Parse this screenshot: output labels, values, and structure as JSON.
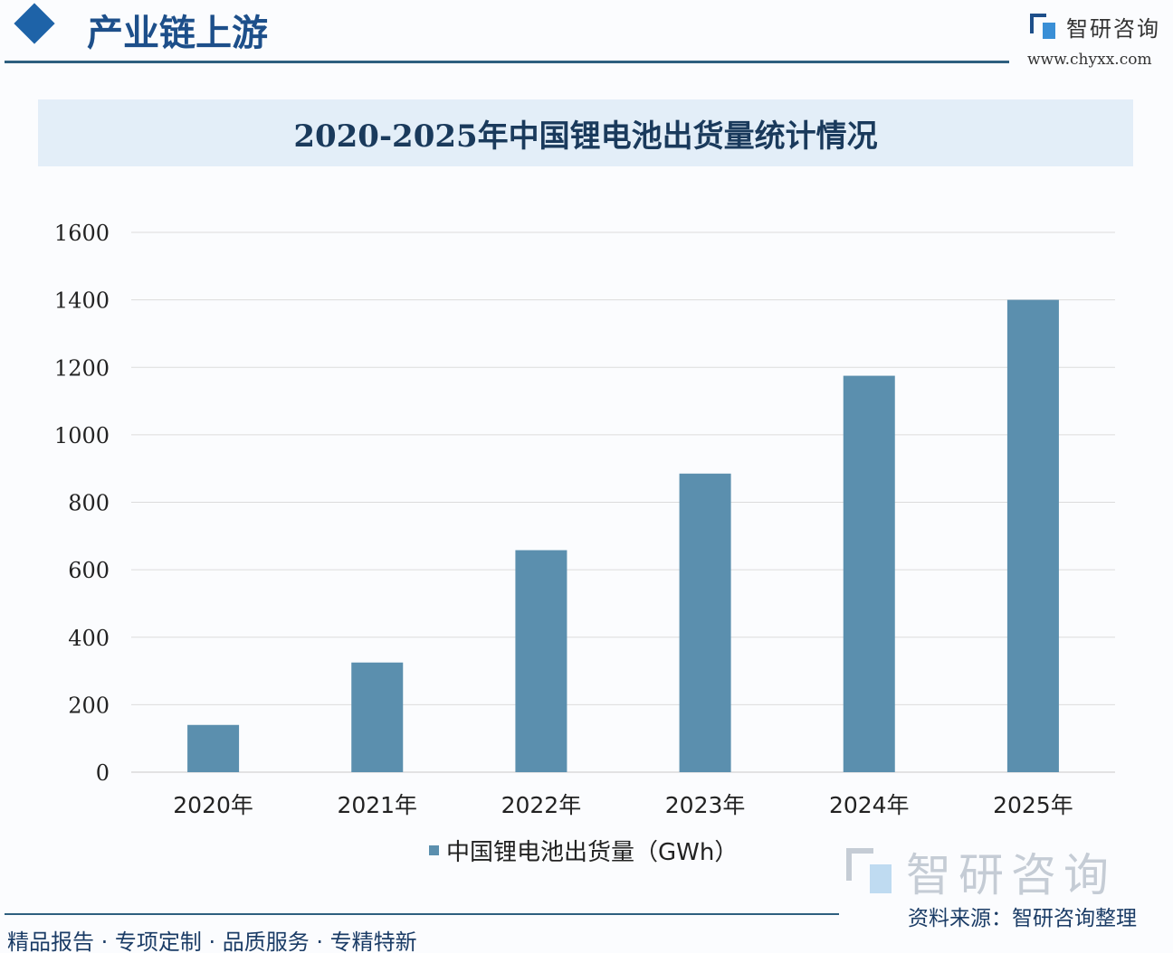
{
  "header": {
    "section_title": "产业链上游",
    "logo_text": "智研咨询",
    "website": "www.chyxx.com"
  },
  "footer": {
    "source": "资料来源：智研咨询整理",
    "slogan": "精品报告 · 专项定制 · 品质服务 · 专精特新",
    "watermark_logo_text": "智研咨询"
  },
  "colors": {
    "bar": "#5b8fae",
    "title_band": "#e3eef8",
    "accent": "#1e63a8"
  },
  "chart_data": {
    "type": "bar",
    "title": "2020-2025年中国锂电池出货量统计情况",
    "categories": [
      "2020年",
      "2021年",
      "2022年",
      "2023年",
      "2024年",
      "2025年"
    ],
    "series": [
      {
        "name": "中国锂电池出货量（GWh）",
        "values": [
          140,
          325,
          658,
          885,
          1175,
          1400
        ]
      }
    ],
    "ylim": [
      0,
      1600
    ],
    "yticks": [
      0,
      200,
      400,
      600,
      800,
      1000,
      1200,
      1400,
      1600
    ],
    "grid": true,
    "legend": "bottom"
  }
}
